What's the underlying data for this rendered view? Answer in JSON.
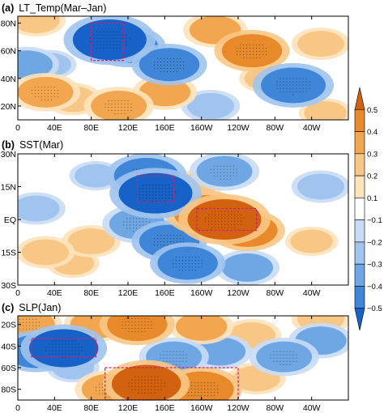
{
  "chart_data": [
    {
      "type": "heatmap",
      "panel_label": "(a)",
      "title": "LT_Temp(Mar–Jan)",
      "xlabels": [
        "0",
        "40E",
        "80E",
        "120E",
        "160E",
        "160W",
        "120W",
        "80W",
        "40W"
      ],
      "ylabels": [
        "80N",
        "60N",
        "40N",
        "20N"
      ],
      "xlim": [
        0,
        360
      ],
      "ylim": [
        10,
        85
      ],
      "highlight_box": {
        "lon": [
          80,
          115
        ],
        "lat": [
          53,
          80
        ]
      },
      "anomalies": [
        {
          "lon": 120,
          "lat": 63,
          "value": -0.35
        },
        {
          "lon": 100,
          "lat": 68,
          "value": -0.5
        },
        {
          "lon": 35,
          "lat": 50,
          "value": -0.15
        },
        {
          "lon": 10,
          "lat": 50,
          "value": -0.25
        },
        {
          "lon": 30,
          "lat": 30,
          "value": 0.3
        },
        {
          "lon": 60,
          "lat": 25,
          "value": 0.2
        },
        {
          "lon": 110,
          "lat": 20,
          "value": 0.3
        },
        {
          "lon": 160,
          "lat": 30,
          "value": 0.25
        },
        {
          "lon": 165,
          "lat": 50,
          "value": -0.35
        },
        {
          "lon": 215,
          "lat": 75,
          "value": 0.25
        },
        {
          "lon": 255,
          "lat": 60,
          "value": 0.35
        },
        {
          "lon": 300,
          "lat": 35,
          "value": -0.4
        },
        {
          "lon": 330,
          "lat": 65,
          "value": 0.2
        },
        {
          "lon": 20,
          "lat": 82,
          "value": 0.2
        },
        {
          "lon": 335,
          "lat": 15,
          "value": 0.15
        },
        {
          "lon": 210,
          "lat": 20,
          "value": -0.2
        },
        {
          "lon": 270,
          "lat": 40,
          "value": 0.15
        }
      ]
    },
    {
      "type": "heatmap",
      "panel_label": "(b)",
      "title": "SST(Mar)",
      "xlabels": [
        "0",
        "40E",
        "80E",
        "120E",
        "160E",
        "160W",
        "120W",
        "80W",
        "40W"
      ],
      "ylabels": [
        "30N",
        "15N",
        "EQ",
        "15S",
        "30S"
      ],
      "xlim": [
        0,
        360
      ],
      "ylim": [
        -30,
        30
      ],
      "highlight_boxes": [
        {
          "lon": [
            130,
            170
          ],
          "lat": [
            8,
            20
          ]
        },
        {
          "lon": [
            195,
            260
          ],
          "lat": [
            -5,
            5
          ]
        }
      ],
      "anomalies": [
        {
          "lon": 150,
          "lat": 12,
          "value": -0.5
        },
        {
          "lon": 140,
          "lat": 20,
          "value": -0.4
        },
        {
          "lon": 165,
          "lat": -10,
          "value": -0.35
        },
        {
          "lon": 185,
          "lat": -20,
          "value": -0.35
        },
        {
          "lon": 130,
          "lat": -2,
          "value": -0.3
        },
        {
          "lon": 225,
          "lat": 0,
          "value": 0.5
        },
        {
          "lon": 205,
          "lat": 3,
          "value": 0.4
        },
        {
          "lon": 250,
          "lat": -5,
          "value": 0.35
        },
        {
          "lon": 190,
          "lat": 15,
          "value": 0.2
        },
        {
          "lon": 225,
          "lat": 22,
          "value": -0.3
        },
        {
          "lon": 250,
          "lat": -22,
          "value": -0.25
        },
        {
          "lon": 80,
          "lat": -10,
          "value": 0.2
        },
        {
          "lon": 60,
          "lat": -20,
          "value": 0.15
        },
        {
          "lon": 30,
          "lat": -15,
          "value": 0.2
        },
        {
          "lon": 20,
          "lat": 5,
          "value": -0.2
        },
        {
          "lon": 320,
          "lat": -10,
          "value": 0.15
        },
        {
          "lon": 330,
          "lat": 15,
          "value": -0.2
        },
        {
          "lon": 85,
          "lat": 20,
          "value": -0.15
        }
      ]
    },
    {
      "type": "heatmap",
      "panel_label": "(c)",
      "title": "SLP(Jan)",
      "xlabels": [
        "0",
        "40E",
        "80E",
        "120E",
        "160E",
        "160W",
        "120W",
        "80W",
        "40W"
      ],
      "ylabels": [
        "20S",
        "40S",
        "60S",
        "80S"
      ],
      "xlim": [
        0,
        360
      ],
      "ylim": [
        -90,
        -12
      ],
      "highlight_boxes": [
        {
          "lon": [
            15,
            85
          ],
          "lat": [
            -33,
            -50
          ]
        },
        {
          "lon": [
            95,
            240
          ],
          "lat": [
            -60,
            -90
          ]
        }
      ],
      "anomalies": [
        {
          "lon": 50,
          "lat": -42,
          "value": -0.45
        },
        {
          "lon": 20,
          "lat": -45,
          "value": -0.35
        },
        {
          "lon": 60,
          "lat": -60,
          "value": -0.15
        },
        {
          "lon": 170,
          "lat": -50,
          "value": -0.3
        },
        {
          "lon": 220,
          "lat": -45,
          "value": -0.25
        },
        {
          "lon": 290,
          "lat": -50,
          "value": -0.3
        },
        {
          "lon": 330,
          "lat": -35,
          "value": -0.25
        },
        {
          "lon": 140,
          "lat": -75,
          "value": 0.45
        },
        {
          "lon": 200,
          "lat": -80,
          "value": 0.4
        },
        {
          "lon": 100,
          "lat": -80,
          "value": 0.3
        },
        {
          "lon": 260,
          "lat": -70,
          "value": 0.2
        },
        {
          "lon": 10,
          "lat": -20,
          "value": 0.3
        },
        {
          "lon": 85,
          "lat": -20,
          "value": 0.25
        },
        {
          "lon": 130,
          "lat": -20,
          "value": 0.35
        },
        {
          "lon": 200,
          "lat": -22,
          "value": 0.25
        },
        {
          "lon": 255,
          "lat": -30,
          "value": 0.2
        },
        {
          "lon": 330,
          "lat": -15,
          "value": 0.2
        }
      ]
    }
  ],
  "colorbar": {
    "ticks": [
      "0.5",
      "0.4",
      "0.3",
      "0.2",
      "0.1",
      "−0.1",
      "−0.2",
      "−0.3",
      "−0.4",
      "−0.5"
    ],
    "colors": [
      "#d2620f",
      "#e98a2a",
      "#f2a64f",
      "#f8c685",
      "#fde2ba",
      "#ffffff",
      "#c8dcf5",
      "#a0c4ee",
      "#6fa6e4",
      "#3f85d8",
      "#1662c8"
    ]
  }
}
